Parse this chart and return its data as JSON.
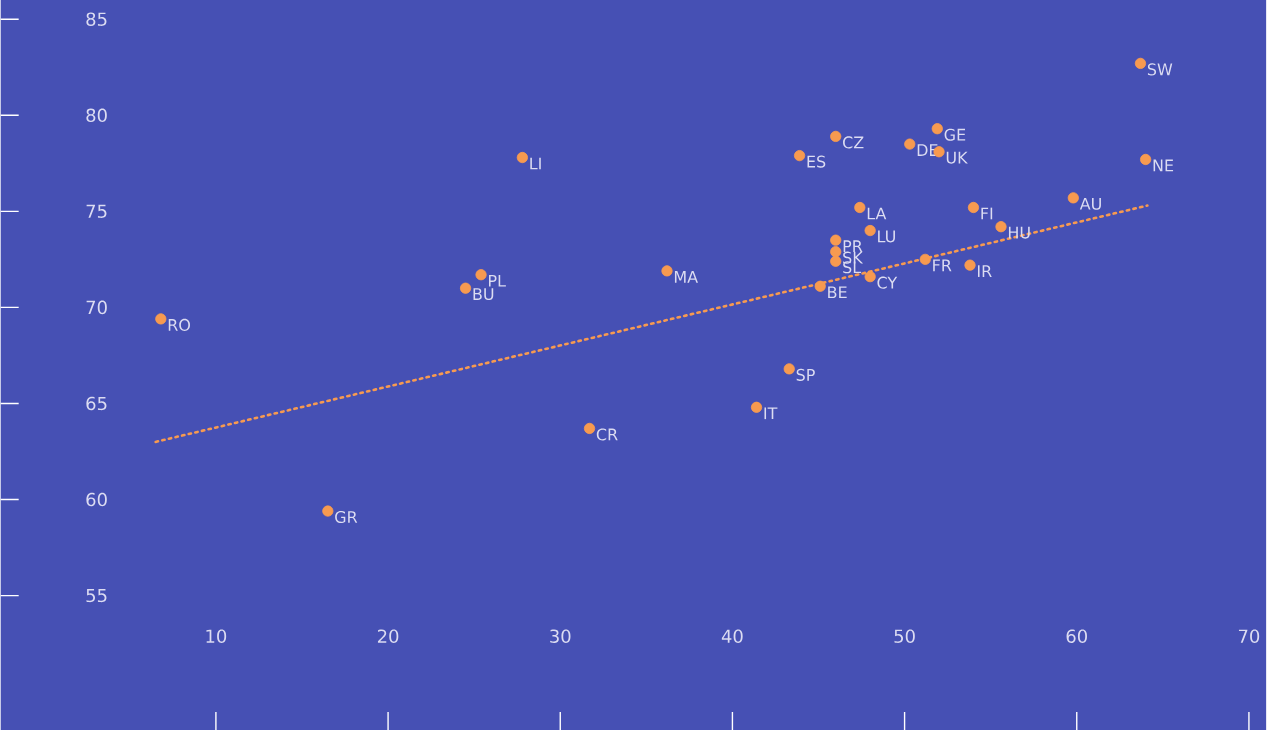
{
  "chart_data": {
    "type": "scatter",
    "xlim": [
      -2.5,
      71
    ],
    "ylim": [
      48,
      86
    ],
    "xticks": [
      10,
      20,
      30,
      40,
      50,
      60,
      70
    ],
    "yticks": [
      55,
      60,
      65,
      70,
      75,
      80,
      85
    ],
    "grid": false,
    "series": [
      {
        "color": "#f79a50",
        "marker": "circle",
        "x": [
          6.8,
          16.5,
          24.5,
          25.4,
          27.8,
          31.7,
          36.2,
          43.3,
          41.4,
          43.9,
          46.0,
          45.1,
          46.0,
          46.0,
          46.0,
          47.4,
          48.0,
          48.0,
          50.3,
          51.9,
          52.0,
          51.2,
          54.0,
          53.8,
          55.6,
          59.8,
          63.7,
          64.0
        ],
        "values": [
          69.4,
          59.4,
          71.0,
          71.7,
          77.8,
          63.7,
          71.9,
          66.8,
          64.8,
          77.9,
          78.9,
          71.1,
          73.5,
          72.9,
          72.4,
          75.2,
          74.0,
          71.6,
          78.5,
          79.3,
          78.1,
          72.5,
          75.2,
          72.2,
          74.2,
          75.7,
          82.7,
          77.7
        ]
      },
      {
        "type": "line",
        "color": "#f79a50",
        "line_style": "dotted",
        "marker": "none",
        "x": [
          6.5,
          64.1
        ],
        "values": [
          63.0,
          75.3
        ]
      }
    ],
    "annotations": [
      {
        "text": "RO",
        "x": 6.8,
        "y": 69.4
      },
      {
        "text": "GR",
        "x": 16.5,
        "y": 59.4
      },
      {
        "text": "BU",
        "x": 24.5,
        "y": 71.0
      },
      {
        "text": "PL",
        "x": 25.4,
        "y": 71.7
      },
      {
        "text": "LI",
        "x": 27.8,
        "y": 77.8
      },
      {
        "text": "CR",
        "x": 31.7,
        "y": 63.7
      },
      {
        "text": "MA",
        "x": 36.2,
        "y": 71.9
      },
      {
        "text": "SP",
        "x": 43.3,
        "y": 66.8
      },
      {
        "text": "IT",
        "x": 41.4,
        "y": 64.8
      },
      {
        "text": "ES",
        "x": 43.9,
        "y": 77.9
      },
      {
        "text": "CZ",
        "x": 46.0,
        "y": 78.9
      },
      {
        "text": "BE",
        "x": 45.1,
        "y": 71.1
      },
      {
        "text": "PR",
        "x": 46.0,
        "y": 73.5
      },
      {
        "text": "SK",
        "x": 46.0,
        "y": 72.9
      },
      {
        "text": "SL",
        "x": 46.0,
        "y": 72.4
      },
      {
        "text": "LA",
        "x": 47.4,
        "y": 75.2
      },
      {
        "text": "LU",
        "x": 48.0,
        "y": 74.0
      },
      {
        "text": "CY",
        "x": 48.0,
        "y": 71.6
      },
      {
        "text": "DE",
        "x": 50.3,
        "y": 78.5
      },
      {
        "text": "GE",
        "x": 51.9,
        "y": 79.3
      },
      {
        "text": "UK",
        "x": 52.0,
        "y": 78.1
      },
      {
        "text": "FR",
        "x": 51.2,
        "y": 72.5
      },
      {
        "text": "FI",
        "x": 54.0,
        "y": 75.2
      },
      {
        "text": "IR",
        "x": 53.8,
        "y": 72.2
      },
      {
        "text": "HU",
        "x": 55.6,
        "y": 74.2
      },
      {
        "text": "AU",
        "x": 59.8,
        "y": 75.7
      },
      {
        "text": "SW",
        "x": 63.7,
        "y": 82.7
      },
      {
        "text": "NE",
        "x": 64.0,
        "y": 77.7
      }
    ]
  }
}
